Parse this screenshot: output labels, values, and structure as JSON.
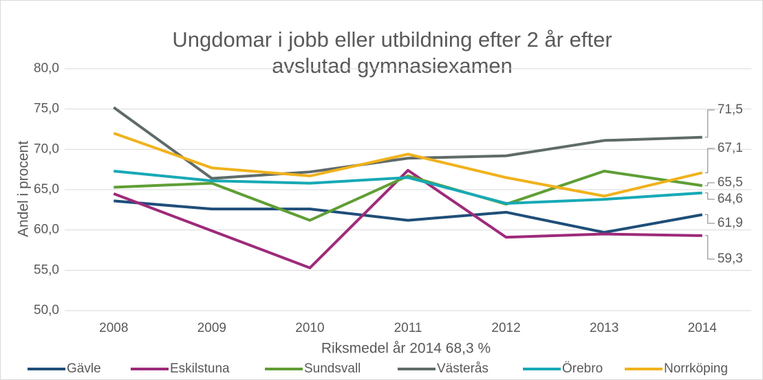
{
  "chart_data": {
    "type": "line",
    "title": [
      "Ungdomar i jobb eller utbildning efter 2 år efter",
      "avslutad gymnasiexamen"
    ],
    "x_label": "Riksmedel år 2014 68,3 %",
    "y_label": "Andel i procent",
    "categories": [
      "2008",
      "2009",
      "2010",
      "2011",
      "2012",
      "2013",
      "2014"
    ],
    "ylim": [
      50,
      80
    ],
    "yticks": [
      {
        "value": 50,
        "label": "50,0"
      },
      {
        "value": 55,
        "label": "55,0"
      },
      {
        "value": 60,
        "label": "60,0"
      },
      {
        "value": 65,
        "label": "65,0"
      },
      {
        "value": 70,
        "label": "70,0"
      },
      {
        "value": 75,
        "label": "75,0"
      },
      {
        "value": 80,
        "label": "80,0"
      }
    ],
    "grid": true,
    "legend": "bottom",
    "series": [
      {
        "name": "Gävle",
        "color": "#1f4e79",
        "values": [
          63.6,
          62.6,
          62.6,
          61.2,
          62.2,
          59.7,
          61.9
        ],
        "value_labels": [
          null,
          null,
          null,
          null,
          null,
          null,
          "61,9"
        ]
      },
      {
        "name": "Eskilstuna",
        "color": "#9e2a7a",
        "values": [
          64.5,
          59.9,
          55.3,
          67.4,
          59.1,
          59.5,
          59.3
        ],
        "value_labels": [
          null,
          null,
          null,
          null,
          null,
          null,
          "59,3"
        ]
      },
      {
        "name": "Sundsvall",
        "color": "#5f9e35",
        "values": [
          65.3,
          65.8,
          61.2,
          66.7,
          63.2,
          67.3,
          65.5
        ],
        "value_labels": [
          null,
          null,
          null,
          null,
          null,
          null,
          "65,5"
        ]
      },
      {
        "name": "Västerås",
        "color": "#5f6b69",
        "values": [
          75.2,
          66.4,
          67.2,
          68.9,
          69.2,
          71.1,
          71.5
        ],
        "value_labels": [
          null,
          null,
          null,
          null,
          null,
          null,
          "71,5"
        ]
      },
      {
        "name": "Örebro",
        "color": "#17a9b5",
        "values": [
          67.3,
          66.1,
          65.8,
          66.5,
          63.3,
          63.8,
          64.6
        ],
        "value_labels": [
          null,
          null,
          null,
          null,
          null,
          null,
          "64,6"
        ]
      },
      {
        "name": "Norrköping",
        "color": "#f0b21c",
        "values": [
          72.0,
          67.7,
          66.7,
          69.4,
          66.5,
          64.2,
          67.1
        ],
        "value_labels": [
          null,
          null,
          null,
          null,
          null,
          null,
          "67,1"
        ]
      }
    ]
  }
}
